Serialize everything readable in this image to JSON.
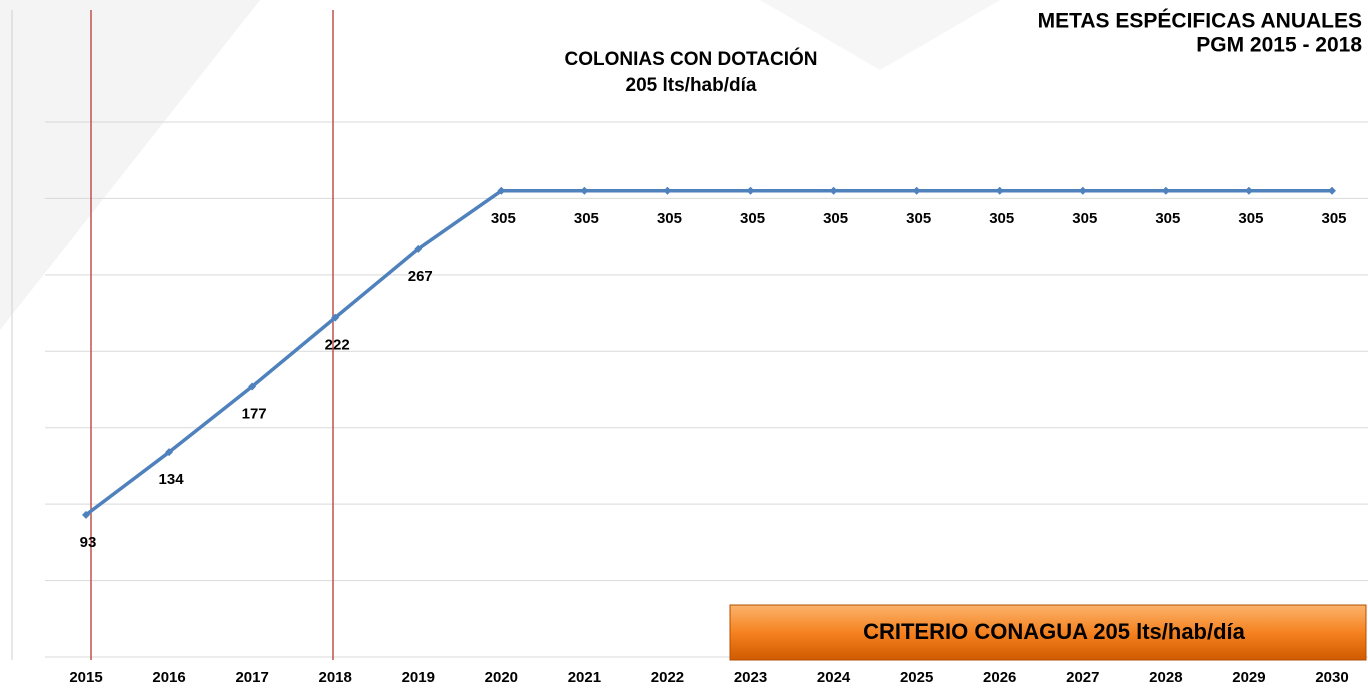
{
  "chart_data": {
    "type": "line",
    "title": "COLONIAS CON DOTACIÓN",
    "subtitle": "205 lts/hab/día",
    "header": [
      "METAS ESPÉCIFICAS ANUALES",
      "PGM 2015 - 2018"
    ],
    "annotation": "CRITERIO CONAGUA 205 lts/hab/día",
    "categories": [
      "2015",
      "2016",
      "2017",
      "2018",
      "2019",
      "2020",
      "2021",
      "2022",
      "2023",
      "2024",
      "2025",
      "2026",
      "2027",
      "2028",
      "2029",
      "2030"
    ],
    "values": [
      93,
      134,
      177,
      222,
      267,
      305,
      305,
      305,
      305,
      305,
      305,
      305,
      305,
      305,
      305,
      305
    ],
    "color": "#4f81bd",
    "ylim": [
      0,
      350
    ],
    "yticks": [
      0,
      50,
      100,
      150,
      200,
      250,
      300,
      350
    ],
    "grid": true
  }
}
